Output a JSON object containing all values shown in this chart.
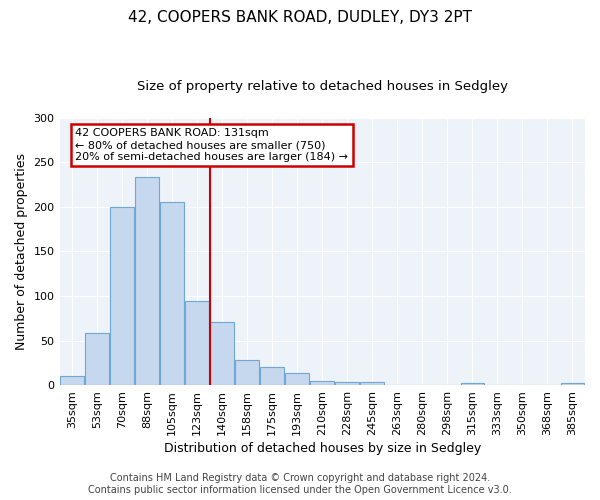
{
  "title": "42, COOPERS BANK ROAD, DUDLEY, DY3 2PT",
  "subtitle": "Size of property relative to detached houses in Sedgley",
  "xlabel": "Distribution of detached houses by size in Sedgley",
  "ylabel": "Number of detached properties",
  "categories": [
    "35sqm",
    "53sqm",
    "70sqm",
    "88sqm",
    "105sqm",
    "123sqm",
    "140sqm",
    "158sqm",
    "175sqm",
    "193sqm",
    "210sqm",
    "228sqm",
    "245sqm",
    "263sqm",
    "280sqm",
    "298sqm",
    "315sqm",
    "333sqm",
    "350sqm",
    "368sqm",
    "385sqm"
  ],
  "values": [
    10,
    58,
    200,
    233,
    205,
    94,
    71,
    28,
    20,
    14,
    5,
    4,
    4,
    0,
    0,
    0,
    2,
    0,
    0,
    0,
    2
  ],
  "bar_color": "#c5d8ee",
  "bar_edge_color": "#6fa8d4",
  "red_line_x": 6.0,
  "annotation_line1": "42 COOPERS BANK ROAD: 131sqm",
  "annotation_line2": "← 80% of detached houses are smaller (750)",
  "annotation_line3": "20% of semi-detached houses are larger (184) →",
  "annotation_box_facecolor": "#ffffff",
  "annotation_box_edgecolor": "#cc0000",
  "footer_line1": "Contains HM Land Registry data © Crown copyright and database right 2024.",
  "footer_line2": "Contains public sector information licensed under the Open Government Licence v3.0.",
  "ylim": [
    0,
    300
  ],
  "background_color": "#ffffff",
  "plot_bg_color": "#eef2f9",
  "grid_color": "#ffffff",
  "title_fontsize": 11,
  "subtitle_fontsize": 9.5,
  "axis_label_fontsize": 9,
  "tick_fontsize": 8,
  "footer_fontsize": 7,
  "yticks": [
    0,
    50,
    100,
    150,
    200,
    250,
    300
  ]
}
